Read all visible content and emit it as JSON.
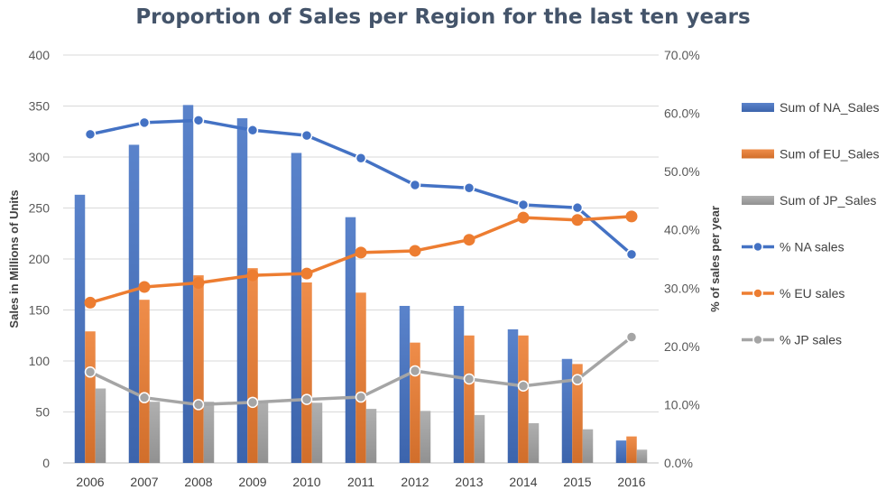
{
  "chart_data": {
    "type": "bar",
    "title": "Proportion of Sales per Region for the last ten years",
    "ylabel": "Sales in Millions of Units",
    "y2label": "% of sales per year",
    "categories": [
      "2006",
      "2007",
      "2008",
      "2009",
      "2010",
      "2011",
      "2012",
      "2013",
      "2014",
      "2015",
      "2016"
    ],
    "ylim": [
      0,
      400
    ],
    "y_ticks": [
      0,
      50,
      100,
      150,
      200,
      250,
      300,
      350,
      400
    ],
    "y_tick_labels": [
      "0",
      "50",
      "100",
      "150",
      "200",
      "250",
      "300",
      "350",
      "400"
    ],
    "y2lim": [
      0,
      0.7
    ],
    "y2_ticks": [
      0,
      0.1,
      0.2,
      0.3,
      0.4,
      0.5,
      0.6,
      0.7
    ],
    "y2_tick_labels": [
      "0.0%",
      "10.0%",
      "20.0%",
      "30.0%",
      "40.0%",
      "50.0%",
      "60.0%",
      "70.0%"
    ],
    "grid": true,
    "legend_position": "right",
    "series": [
      {
        "name": "Sum of NA_Sales",
        "type": "bar",
        "axis": "left",
        "color": "#4472c4",
        "values": [
          263,
          312,
          351,
          338,
          304,
          241,
          154,
          154,
          131,
          102,
          22
        ]
      },
      {
        "name": "Sum of EU_Sales",
        "type": "bar",
        "axis": "left",
        "color": "#ed7d31",
        "values": [
          129,
          160,
          184,
          191,
          177,
          167,
          118,
          125,
          125,
          97,
          26
        ]
      },
      {
        "name": "Sum of JP_Sales",
        "type": "bar",
        "axis": "left",
        "color": "#a5a5a5",
        "values": [
          73,
          60,
          60,
          61,
          59,
          53,
          51,
          47,
          39,
          33,
          13
        ]
      },
      {
        "name": "% NA sales",
        "type": "line",
        "axis": "right",
        "color": "#4472c4",
        "values": [
          0.564,
          0.584,
          0.588,
          0.571,
          0.562,
          0.523,
          0.477,
          0.472,
          0.443,
          0.438,
          0.358
        ]
      },
      {
        "name": "% EU sales",
        "type": "line",
        "axis": "right",
        "color": "#ed7d31",
        "values": [
          0.275,
          0.302,
          0.309,
          0.322,
          0.325,
          0.361,
          0.364,
          0.383,
          0.421,
          0.417,
          0.423
        ]
      },
      {
        "name": "% JP sales",
        "type": "line",
        "axis": "right",
        "color": "#a5a5a5",
        "values": [
          0.156,
          0.112,
          0.1,
          0.104,
          0.109,
          0.113,
          0.158,
          0.144,
          0.132,
          0.143,
          0.216
        ]
      }
    ]
  }
}
